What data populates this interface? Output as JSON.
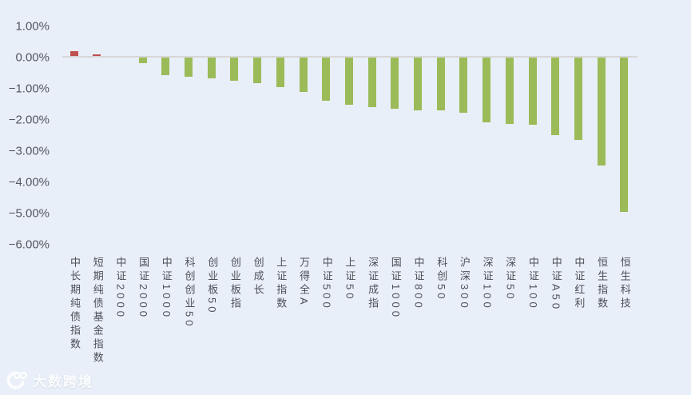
{
  "watermark": {
    "text": "大数跨境",
    "logo": "dashu-logo-icon"
  },
  "chart_data": {
    "type": "bar",
    "title": "",
    "unit": "%",
    "categories": [
      "中长期纯债指数",
      "短期纯债基金指数",
      "中证2000",
      "国证2000",
      "中证1000",
      "科创创业50",
      "创业板50",
      "创业板指",
      "创成长",
      "上证指数",
      "万得全A",
      "中证500",
      "上证50",
      "深证成指",
      "国证1000",
      "中证800",
      "科创50",
      "沪深300",
      "深证100",
      "深证50",
      "中证100",
      "中证A50",
      "中证红利",
      "恒生指数",
      "恒生科技"
    ],
    "values": [
      0.15,
      0.06,
      0.0,
      -0.19,
      -0.55,
      -0.62,
      -0.66,
      -0.73,
      -0.82,
      -0.95,
      -1.1,
      -1.38,
      -1.5,
      -1.58,
      -1.64,
      -1.68,
      -1.7,
      -1.76,
      -2.08,
      -2.13,
      -2.14,
      -2.49,
      -2.64,
      -3.47,
      -4.95
    ],
    "y_ticks": [
      "1.00%",
      "0.00%",
      "−1.00%",
      "−2.00%",
      "−3.00%",
      "−4.00%",
      "−5.00%",
      "−6.00%"
    ],
    "ylim": [
      -6,
      1
    ],
    "grid": false,
    "legend": false,
    "x_labels_rotated_vertical": true,
    "positive_color": "#c0504d",
    "negative_color": "#9bbb59",
    "background_color": "#e9eff8",
    "axis_line_color": "#d7d7d7",
    "tick_text_color": "#53565c"
  }
}
